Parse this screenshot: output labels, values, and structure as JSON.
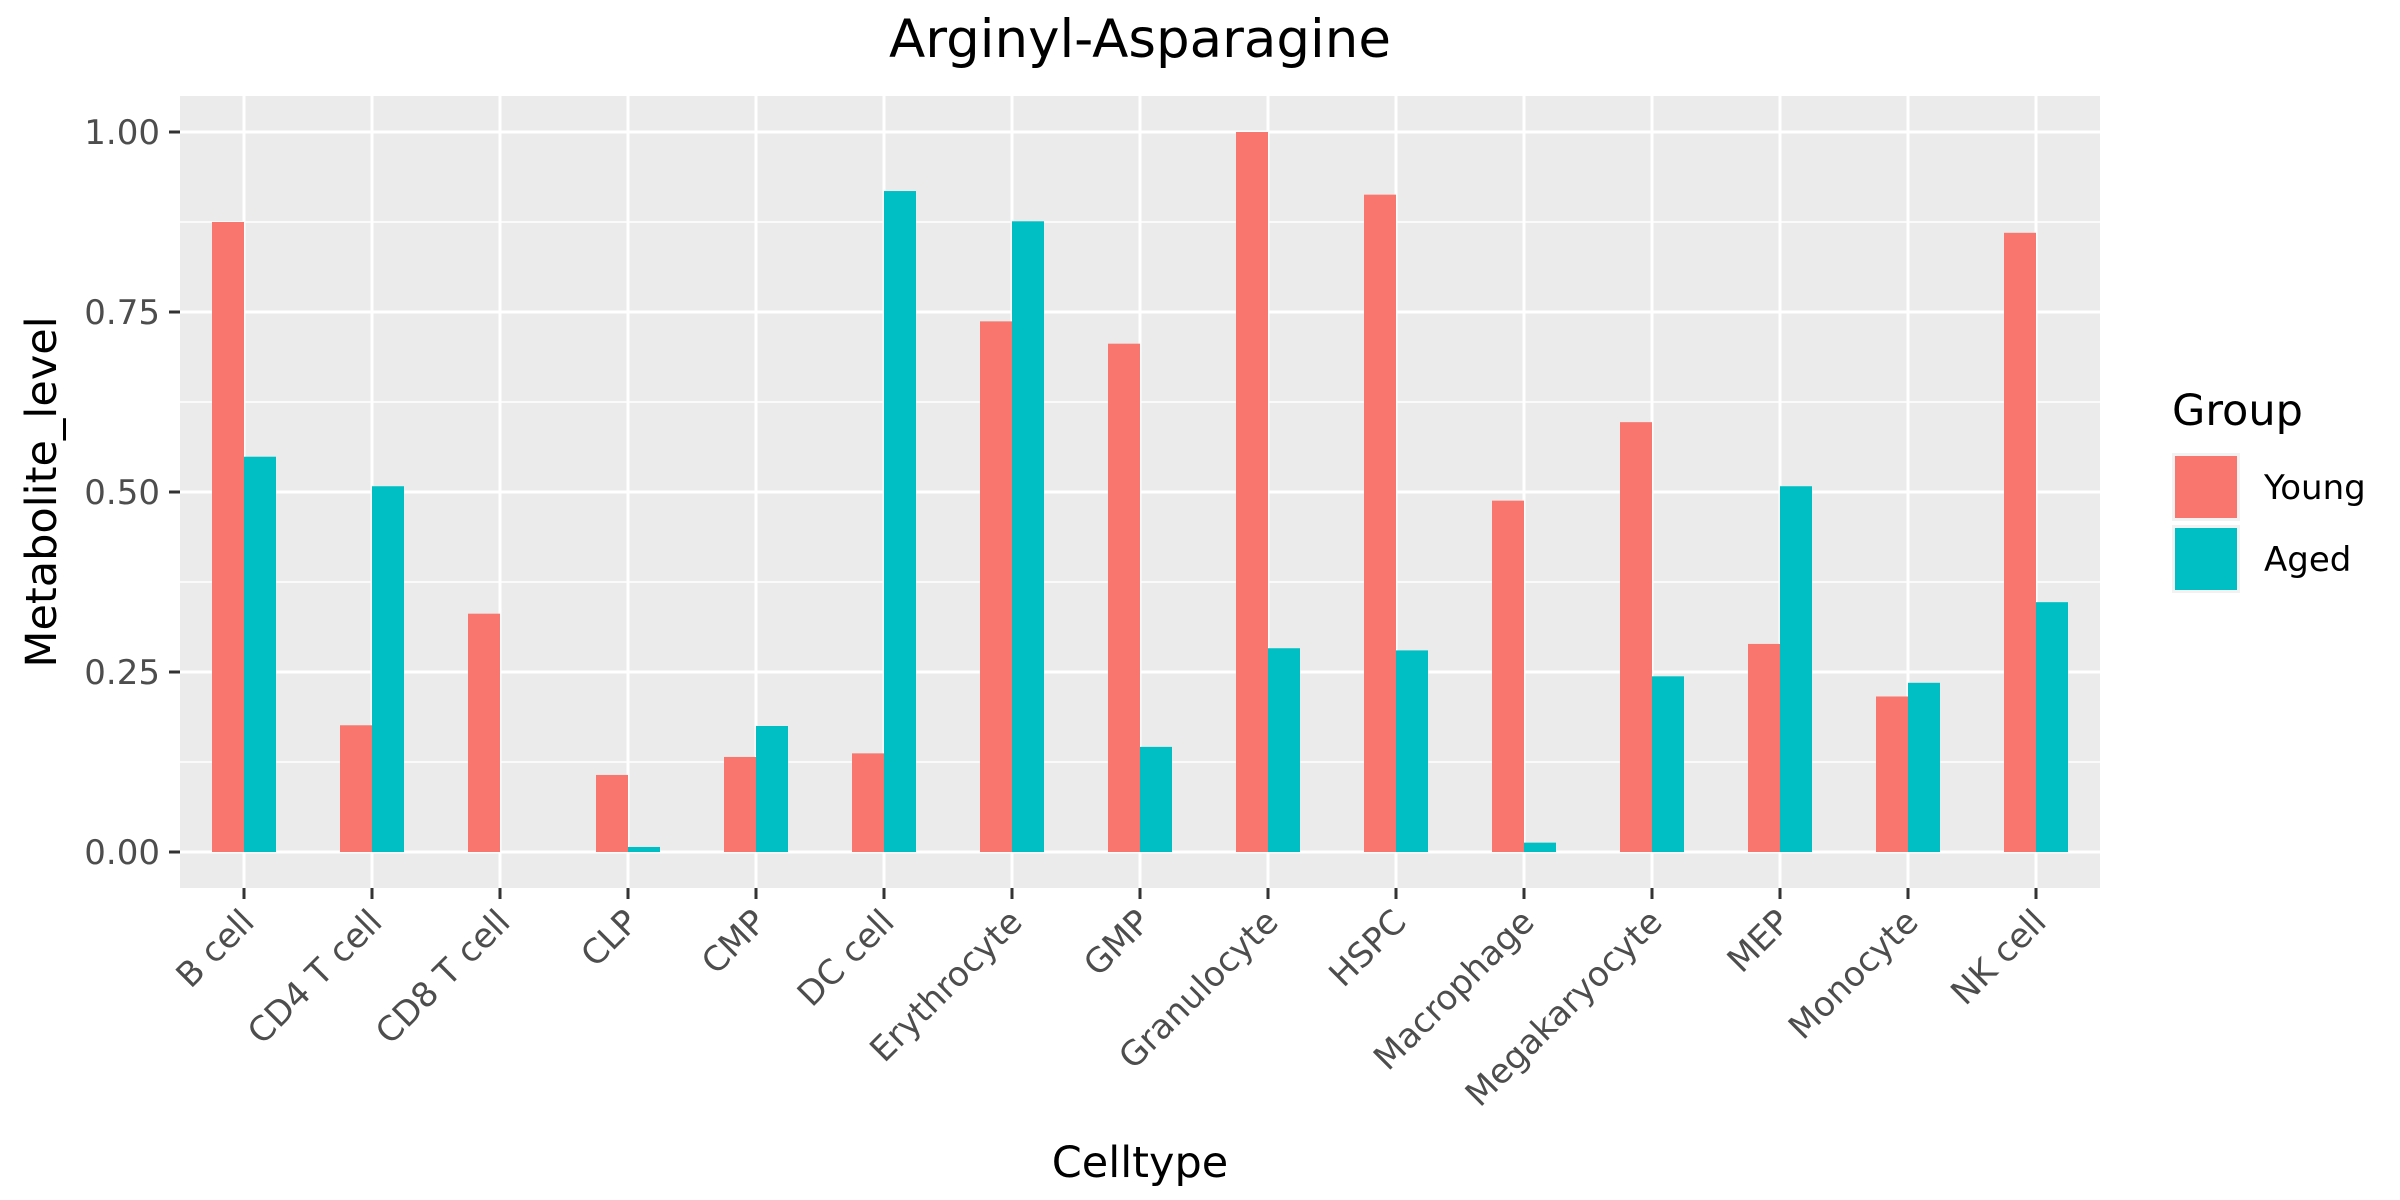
{
  "chart_data": {
    "type": "bar",
    "title": "Arginyl-Asparagine",
    "xlabel": "Celltype",
    "ylabel": "Metabolite_level",
    "ylim": [
      -0.05,
      1.05
    ],
    "yticks": [
      0.0,
      0.25,
      0.5,
      0.75,
      1.0
    ],
    "ytick_labels": [
      "0.00",
      "0.25",
      "0.50",
      "0.75",
      "1.00"
    ],
    "grid": true,
    "legend": {
      "title": "Group",
      "position": "right"
    },
    "categories": [
      "B cell",
      "CD4 T cell",
      "CD8 T cell",
      "CLP",
      "CMP",
      "DC cell",
      "Erythrocyte",
      "GMP",
      "Granulocyte",
      "HSPC",
      "Macrophage",
      "Megakaryocyte",
      "MEP",
      "Monocyte",
      "NK cell"
    ],
    "series": [
      {
        "name": "Young",
        "color": "#F8766D",
        "values": [
          0.875,
          0.176,
          0.331,
          0.107,
          0.132,
          0.137,
          0.737,
          0.706,
          1.0,
          0.913,
          0.488,
          0.597,
          0.289,
          0.216,
          0.86
        ]
      },
      {
        "name": "Aged",
        "color": "#00BFC4",
        "values": [
          0.549,
          0.508,
          0.0,
          0.007,
          0.175,
          0.918,
          0.876,
          0.146,
          0.283,
          0.28,
          0.013,
          0.244,
          0.508,
          0.235,
          0.347
        ]
      }
    ]
  }
}
